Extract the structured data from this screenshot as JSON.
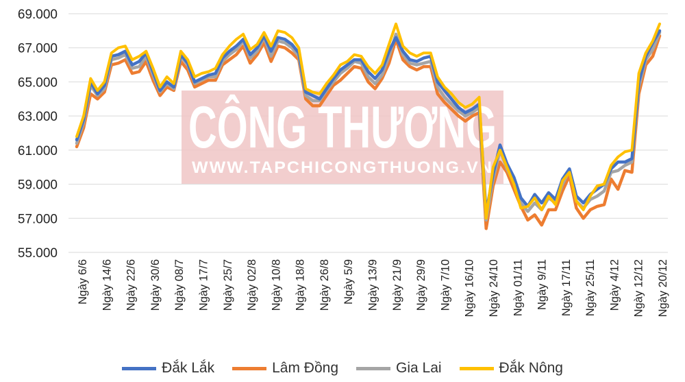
{
  "chart_data": {
    "type": "line",
    "title": "",
    "xlabel": "",
    "ylabel": "",
    "ylim": [
      55000,
      69000
    ],
    "ytick_labels": [
      "55.000",
      "57.000",
      "59.000",
      "61.000",
      "63.000",
      "65.000",
      "67.000",
      "69.000"
    ],
    "grid": true,
    "legend_position": "bottom",
    "x_tick_labels": [
      "Ngày 6/6",
      "Ngày 14/6",
      "Ngày 22/6",
      "Ngày 30/6",
      "Ngày 08/7",
      "Ngày 17/7",
      "Ngày 25/7",
      "Ngày 02/8",
      "Ngày 10/8",
      "Ngày 18/8",
      "Ngày 26/8",
      "Ngày 5/9",
      "Ngày 13/9",
      "Ngày 21/9",
      "Ngày 29/9",
      "Ngày 7/10",
      "Ngày 16/10",
      "Ngày 24/10",
      "Ngày 01/11",
      "Ngày 9/11",
      "Ngày 17/11",
      "Ngày 25/11",
      "Ngày 4/12",
      "Ngày 12/12",
      "Ngày 20/12"
    ],
    "series": [
      {
        "name": "Đắk Lắk",
        "color": "#4472C4",
        "values": [
          61600,
          62800,
          65000,
          64300,
          64800,
          66500,
          66600,
          66800,
          66000,
          66200,
          66700,
          65600,
          64500,
          65000,
          64700,
          66600,
          66100,
          65000,
          65200,
          65400,
          65500,
          66400,
          66800,
          67100,
          67500,
          66600,
          67000,
          67700,
          66800,
          67600,
          67500,
          67200,
          66700,
          64400,
          64200,
          64000,
          64600,
          65200,
          65700,
          66000,
          66300,
          66300,
          65600,
          65200,
          65700,
          66800,
          67600,
          66800,
          66300,
          66200,
          66400,
          66500,
          65000,
          64500,
          64000,
          63500,
          63200,
          63400,
          63700,
          57300,
          59600,
          61300,
          60200,
          59400,
          58200,
          57700,
          58400,
          57900,
          58500,
          58100,
          59300,
          59900,
          58300,
          57900,
          58400,
          58700,
          59000,
          59900,
          60300,
          60300,
          60500,
          65000,
          66500,
          67300,
          68000
        ]
      },
      {
        "name": "Lâm Đồng",
        "color": "#ED7D31",
        "values": [
          61200,
          62300,
          64300,
          64000,
          64400,
          66000,
          66100,
          66300,
          65500,
          65600,
          66200,
          65100,
          64200,
          64700,
          64500,
          66200,
          65700,
          64700,
          64900,
          65100,
          65100,
          66000,
          66300,
          66600,
          67100,
          66100,
          66600,
          67300,
          66200,
          67100,
          67000,
          66700,
          66300,
          64000,
          63600,
          63600,
          64200,
          64800,
          65100,
          65500,
          65900,
          65800,
          65000,
          64600,
          65200,
          66100,
          67500,
          66300,
          65900,
          65700,
          65900,
          65900,
          64300,
          63800,
          63400,
          63000,
          62700,
          63000,
          63200,
          56400,
          58900,
          60300,
          59700,
          58700,
          57700,
          56900,
          57200,
          56600,
          57500,
          57500,
          58600,
          59500,
          57600,
          57000,
          57500,
          57700,
          57800,
          59300,
          58700,
          59800,
          59700,
          64300,
          66000,
          66500,
          67700
        ]
      },
      {
        "name": "Gia Lai",
        "color": "#A5A5A5",
        "values": [
          61400,
          62600,
          64800,
          64200,
          64600,
          66300,
          66400,
          66600,
          65800,
          65900,
          66500,
          65400,
          64400,
          64900,
          64600,
          66500,
          66000,
          64900,
          65100,
          65300,
          65300,
          66200,
          66600,
          66900,
          67400,
          66400,
          66800,
          67600,
          66500,
          67400,
          67300,
          67000,
          66500,
          64200,
          63900,
          63900,
          64500,
          65000,
          65500,
          65800,
          66200,
          66100,
          65300,
          64900,
          65400,
          66500,
          67800,
          66600,
          66100,
          66000,
          66100,
          66200,
          64700,
          64100,
          63700,
          63300,
          63000,
          63200,
          63500,
          56900,
          59300,
          61000,
          59900,
          59100,
          57900,
          57400,
          57900,
          57500,
          58200,
          57900,
          59000,
          59800,
          58000,
          57600,
          58100,
          58300,
          58600,
          59700,
          59800,
          60100,
          60300,
          64700,
          66300,
          66900,
          67900
        ]
      },
      {
        "name": "Đắk Nông",
        "color": "#FFC000",
        "values": [
          61800,
          63000,
          65200,
          64500,
          65000,
          66700,
          67000,
          67100,
          66300,
          66500,
          66800,
          65800,
          64700,
          65300,
          64900,
          66800,
          66300,
          65300,
          65500,
          65600,
          65800,
          66600,
          67100,
          67500,
          67800,
          66900,
          67200,
          67900,
          67100,
          68000,
          67900,
          67600,
          67000,
          64600,
          64400,
          64300,
          64900,
          65400,
          66000,
          66200,
          66600,
          66500,
          65900,
          65500,
          66000,
          67200,
          68400,
          67100,
          66700,
          66500,
          66700,
          66700,
          65300,
          64700,
          64300,
          63800,
          63500,
          63700,
          64100,
          57000,
          60000,
          61000,
          60000,
          59000,
          57600,
          57700,
          58200,
          57500,
          58300,
          57800,
          59200,
          59700,
          58000,
          57500,
          58300,
          58900,
          59000,
          60100,
          60600,
          60900,
          61000,
          65500,
          66700,
          67400,
          68400
        ]
      }
    ]
  },
  "watermark": {
    "title": "CÔNG THƯƠNG",
    "url": "WWW.TAPCHICONGTHUONG.VN"
  },
  "legend": [
    {
      "label": "Đắk Lắk",
      "color": "#4472C4"
    },
    {
      "label": "Lâm Đồng",
      "color": "#ED7D31"
    },
    {
      "label": "Gia Lai",
      "color": "#A5A5A5"
    },
    {
      "label": "Đắk Nông",
      "color": "#FFC000"
    }
  ]
}
